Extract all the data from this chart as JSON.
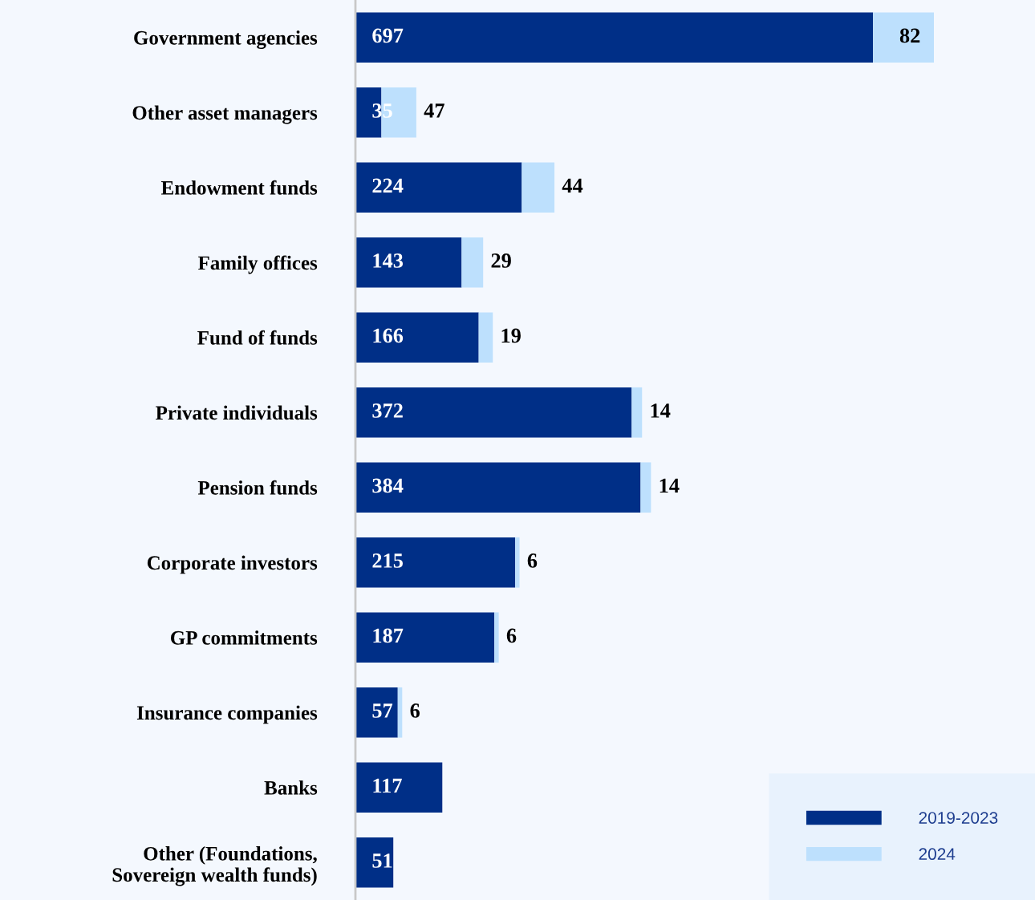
{
  "chart_data": {
    "type": "bar",
    "orientation": "horizontal",
    "stacked": true,
    "data_labels": true,
    "legend": "bottom right",
    "grid": false,
    "categories": [
      "Government agencies",
      "Other asset managers",
      "Endowment funds",
      "Family offices",
      "Fund of funds",
      "Private individuals",
      "Pension funds",
      "Corporate investors",
      "GP commitments",
      "Insurance companies",
      "Banks",
      "Other (Foundations,\nSovereign wealth funds)"
    ],
    "series": [
      {
        "name": "2019-2023",
        "color": "#002f87",
        "values": [
          697,
          35,
          224,
          143,
          166,
          372,
          384,
          215,
          187,
          57,
          117,
          51
        ]
      },
      {
        "name": "2024",
        "color": "#bde0fd",
        "values": [
          82,
          47,
          44,
          29,
          19,
          14,
          14,
          6,
          6,
          6,
          null,
          null
        ]
      }
    ]
  }
}
